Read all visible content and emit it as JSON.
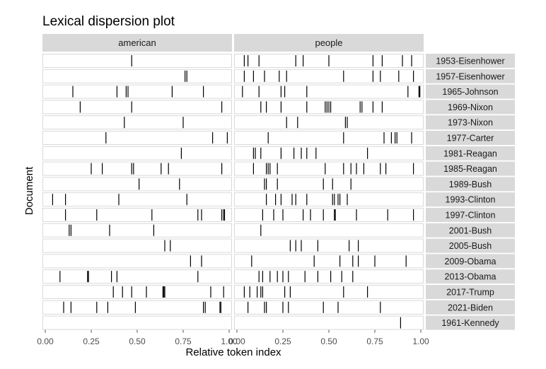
{
  "chart_data": {
    "type": "lexical-dispersion",
    "title": "Lexical dispersion plot",
    "xlabel": "Relative token index",
    "ylabel": "Document",
    "xlim": [
      0,
      1
    ],
    "x_ticks": [
      "0.00",
      "0.25",
      "0.50",
      "0.75",
      "1.00"
    ],
    "facets": [
      "american",
      "people"
    ],
    "documents": [
      "1953-Eisenhower",
      "1957-Eisenhower",
      "1965-Johnson",
      "1969-Nixon",
      "1973-Nixon",
      "1977-Carter",
      "1981-Reagan",
      "1985-Reagan",
      "1989-Bush",
      "1993-Clinton",
      "1997-Clinton",
      "2001-Bush",
      "2005-Bush",
      "2009-Obama",
      "2013-Obama",
      "2017-Trump",
      "2021-Biden",
      "1961-Kennedy"
    ],
    "colors": {
      "strip": "#d9d9d9",
      "panel_border": "#d9d9d9",
      "mark": "#000000"
    },
    "occurrences": {
      "american": {
        "1953-Eisenhower": [
          0.47
        ],
        "1957-Eisenhower": [
          0.76,
          0.77
        ],
        "1965-Johnson": [
          0.15,
          0.39,
          0.44,
          0.45,
          0.69,
          0.86
        ],
        "1969-Nixon": [
          0.19,
          0.47,
          0.96
        ],
        "1973-Nixon": [
          0.43,
          0.75
        ],
        "1977-Carter": [
          0.33,
          0.91,
          0.99
        ],
        "1981-Reagan": [
          0.74
        ],
        "1985-Reagan": [
          0.25,
          0.31,
          0.47,
          0.48,
          0.63,
          0.67,
          0.96
        ],
        "1989-Bush": [
          0.51,
          0.73
        ],
        "1993-Clinton": [
          0.04,
          0.11,
          0.4,
          0.77
        ],
        "1997-Clinton": [
          0.11,
          0.28,
          0.58,
          0.83,
          0.85,
          0.96,
          0.97,
          0.975
        ],
        "2001-Bush": [
          0.13,
          0.14,
          0.35,
          0.59
        ],
        "2005-Bush": [
          0.65,
          0.68
        ],
        "2009-Obama": [
          0.79,
          0.85
        ],
        "2013-Obama": [
          0.08,
          0.23,
          0.235,
          0.36,
          0.39,
          0.83
        ],
        "2017-Trump": [
          0.37,
          0.42,
          0.47,
          0.55,
          0.64,
          0.645,
          0.65,
          0.9,
          0.97
        ],
        "2021-Biden": [
          0.1,
          0.14,
          0.28,
          0.34,
          0.49,
          0.86,
          0.87,
          0.95,
          0.955
        ],
        "1961-Kennedy": []
      },
      "people": {
        "1953-Eisenhower": [
          0.04,
          0.06,
          0.12,
          0.32,
          0.36,
          0.5,
          0.74,
          0.79,
          0.9,
          0.95
        ],
        "1957-Eisenhower": [
          0.04,
          0.09,
          0.15,
          0.23,
          0.27,
          0.58,
          0.74,
          0.78,
          0.88,
          0.96
        ],
        "1965-Johnson": [
          0.03,
          0.12,
          0.24,
          0.26,
          0.38,
          0.93,
          0.99,
          0.995
        ],
        "1969-Nixon": [
          0.13,
          0.16,
          0.24,
          0.38,
          0.48,
          0.49,
          0.5,
          0.51,
          0.67,
          0.68,
          0.74,
          0.79
        ],
        "1973-Nixon": [
          0.27,
          0.33,
          0.59,
          0.6
        ],
        "1977-Carter": [
          0.17,
          0.58,
          0.8,
          0.84,
          0.86,
          0.87,
          0.95
        ],
        "1981-Reagan": [
          0.09,
          0.1,
          0.13,
          0.24,
          0.31,
          0.35,
          0.38,
          0.43,
          0.71
        ],
        "1985-Reagan": [
          0.09,
          0.16,
          0.17,
          0.18,
          0.22,
          0.48,
          0.58,
          0.62,
          0.65,
          0.69,
          0.78,
          0.81,
          0.96
        ],
        "1989-Bush": [
          0.15,
          0.16,
          0.22,
          0.47,
          0.52,
          0.62
        ],
        "1993-Clinton": [
          0.16,
          0.21,
          0.24,
          0.3,
          0.32,
          0.38,
          0.52,
          0.53,
          0.55,
          0.56,
          0.6
        ],
        "1997-Clinton": [
          0.14,
          0.2,
          0.25,
          0.36,
          0.4,
          0.47,
          0.53,
          0.535,
          0.65,
          0.82,
          0.96
        ],
        "2001-Bush": [
          0.13
        ],
        "2005-Bush": [
          0.29,
          0.32,
          0.35,
          0.44,
          0.61,
          0.66
        ],
        "2009-Obama": [
          0.08,
          0.42,
          0.56,
          0.63,
          0.66,
          0.75,
          0.92
        ],
        "2013-Obama": [
          0.12,
          0.14,
          0.18,
          0.22,
          0.25,
          0.28,
          0.37,
          0.44,
          0.51,
          0.57,
          0.63
        ],
        "2017-Trump": [
          0.04,
          0.07,
          0.11,
          0.13,
          0.14,
          0.26,
          0.29,
          0.58,
          0.71
        ],
        "2021-Biden": [
          0.06,
          0.15,
          0.16,
          0.25,
          0.28,
          0.47,
          0.55,
          0.78
        ],
        "1961-Kennedy": [
          0.89
        ]
      }
    }
  }
}
